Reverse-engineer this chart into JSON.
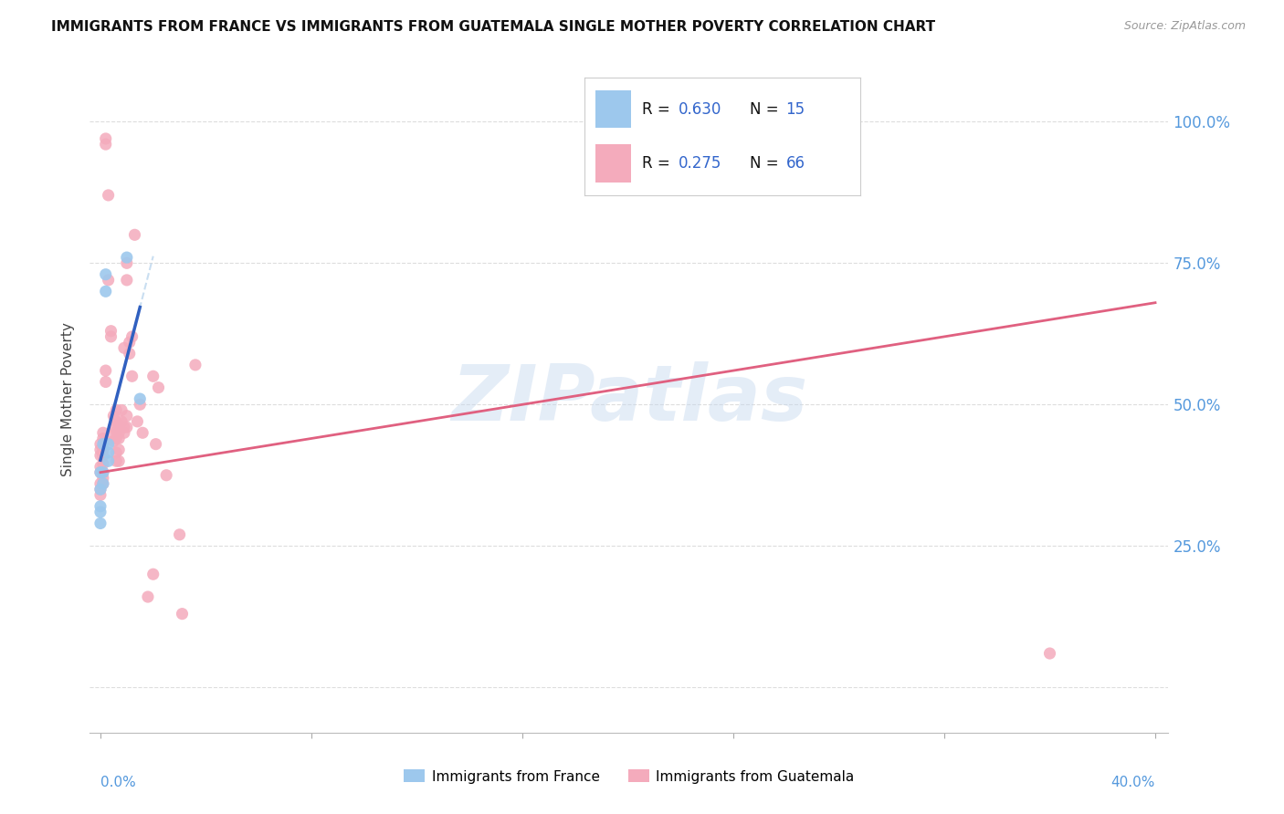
{
  "title": "IMMIGRANTS FROM FRANCE VS IMMIGRANTS FROM GUATEMALA SINGLE MOTHER POVERTY CORRELATION CHART",
  "source": "Source: ZipAtlas.com",
  "ylabel": "Single Mother Poverty",
  "france_R": 0.63,
  "france_N": 15,
  "guatemala_R": 0.275,
  "guatemala_N": 66,
  "france_color": "#9DC8ED",
  "guatemala_color": "#F4ABBC",
  "france_line_color": "#3060C0",
  "guatemala_line_color": "#E06080",
  "france_dash_color": "#B8D4ED",
  "axis_label_color": "#5599DD",
  "ytick_vals": [
    0.0,
    0.25,
    0.5,
    0.75,
    1.0
  ],
  "ytick_labels": [
    "",
    "25.0%",
    "50.0%",
    "75.0%",
    "100.0%"
  ],
  "xlim": [
    -0.004,
    0.405
  ],
  "ylim": [
    -0.08,
    1.1
  ],
  "france_scatter_x": [
    0.0,
    0.0,
    0.0,
    0.0,
    0.0,
    0.001,
    0.001,
    0.001,
    0.002,
    0.002,
    0.003,
    0.003,
    0.003,
    0.01,
    0.015
  ],
  "france_scatter_y": [
    0.38,
    0.35,
    0.32,
    0.31,
    0.29,
    0.43,
    0.38,
    0.36,
    0.73,
    0.7,
    0.43,
    0.415,
    0.4,
    0.76,
    0.51
  ],
  "guatemala_scatter_x": [
    0.0,
    0.0,
    0.0,
    0.0,
    0.0,
    0.0,
    0.0,
    0.0,
    0.001,
    0.001,
    0.001,
    0.001,
    0.001,
    0.001,
    0.001,
    0.001,
    0.002,
    0.002,
    0.002,
    0.002,
    0.003,
    0.003,
    0.004,
    0.004,
    0.005,
    0.005,
    0.005,
    0.005,
    0.006,
    0.006,
    0.006,
    0.006,
    0.006,
    0.006,
    0.007,
    0.007,
    0.007,
    0.007,
    0.007,
    0.008,
    0.008,
    0.009,
    0.009,
    0.009,
    0.01,
    0.01,
    0.01,
    0.01,
    0.011,
    0.011,
    0.012,
    0.012,
    0.013,
    0.014,
    0.015,
    0.016,
    0.018,
    0.02,
    0.02,
    0.021,
    0.022,
    0.025,
    0.03,
    0.031,
    0.036,
    0.36
  ],
  "guatemala_scatter_y": [
    0.38,
    0.36,
    0.35,
    0.34,
    0.42,
    0.43,
    0.41,
    0.39,
    0.44,
    0.45,
    0.42,
    0.41,
    0.395,
    0.38,
    0.37,
    0.36,
    0.97,
    0.96,
    0.56,
    0.54,
    0.87,
    0.72,
    0.63,
    0.62,
    0.48,
    0.46,
    0.445,
    0.435,
    0.49,
    0.47,
    0.453,
    0.44,
    0.415,
    0.4,
    0.465,
    0.45,
    0.44,
    0.42,
    0.4,
    0.49,
    0.47,
    0.46,
    0.45,
    0.6,
    0.75,
    0.72,
    0.48,
    0.46,
    0.61,
    0.59,
    0.55,
    0.62,
    0.8,
    0.47,
    0.5,
    0.45,
    0.16,
    0.2,
    0.55,
    0.43,
    0.53,
    0.375,
    0.27,
    0.13,
    0.57,
    0.06
  ],
  "watermark_text": "ZIPatlas",
  "watermark_color": "#C5D8EE",
  "watermark_alpha": 0.45,
  "title_fontsize": 11,
  "source_fontsize": 9,
  "legend_text_color": "#111111",
  "legend_value_color": "#3366CC"
}
